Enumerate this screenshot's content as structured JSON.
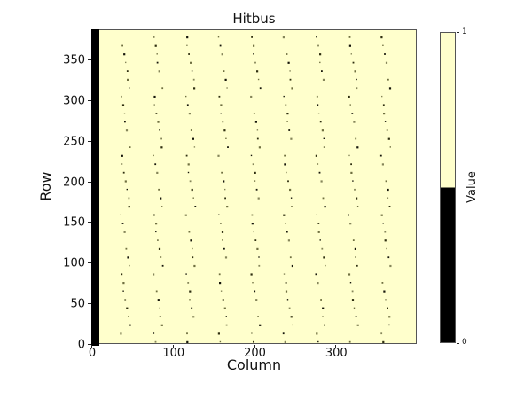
{
  "chart_data": {
    "type": "heatmap",
    "title": "Hitbus",
    "xlabel": "Column",
    "ylabel": "Row",
    "xlim": [
      0,
      400
    ],
    "ylim": [
      0,
      387
    ],
    "x_ticks": [
      0,
      100,
      200,
      300
    ],
    "y_ticks": [
      0,
      50,
      100,
      150,
      200,
      250,
      300,
      350
    ],
    "grid": false,
    "legend": false,
    "colormap": {
      "0": "#000000",
      "1": "#ffffcc"
    },
    "background_value": 1,
    "features": {
      "solid_zero_column": {
        "description": "solid block of value 0 along the left edge",
        "column_range": [
          0,
          8
        ],
        "row_range": [
          0,
          387
        ],
        "value": 0
      },
      "hit_dot_columns": {
        "description": "sparse single-pixel value-0 hits forming slanted dotted verticals",
        "column_positions": [
          40,
          80,
          120,
          160,
          200,
          240,
          280,
          320,
          360
        ],
        "row_start": 380,
        "row_step": 10.4,
        "zigzag_group_size": 7,
        "zigzag_drift_columns": 1.7,
        "value": 0
      }
    },
    "colorbar": {
      "label": "Value",
      "orientation": "vertical",
      "position": "right",
      "tick_labels": {
        "top": "1",
        "bottom": "0"
      }
    }
  }
}
